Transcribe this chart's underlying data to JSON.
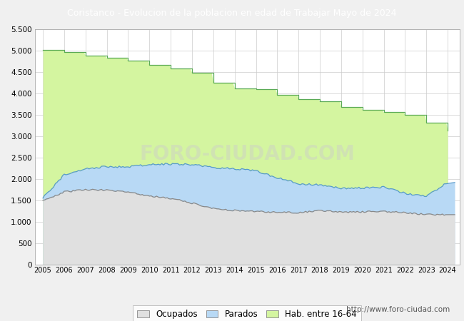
{
  "title": "Coristanco - Evolucion de la poblacion en edad de Trabajar Mayo de 2024",
  "title_bg": "#4a7cc7",
  "title_color": "#ffffff",
  "ylim": [
    0,
    5500
  ],
  "yticks": [
    0,
    500,
    1000,
    1500,
    2000,
    2500,
    3000,
    3500,
    4000,
    4500,
    5000,
    5500
  ],
  "watermark": "http://www.foro-ciudad.com",
  "legend_labels": [
    "Ocupados",
    "Parados",
    "Hab. entre 16-64"
  ],
  "colors": {
    "hab_fill": "#d4f5a0",
    "hab_line": "#5aaa55",
    "parados_fill": "#b8d9f5",
    "parados_line": "#5599cc",
    "ocupados_fill": "#e0e0e0",
    "ocupados_line": "#888888"
  },
  "years": [
    2005,
    2006,
    2007,
    2008,
    2009,
    2010,
    2011,
    2012,
    2013,
    2014,
    2015,
    2016,
    2017,
    2018,
    2019,
    2020,
    2021,
    2022,
    2023,
    2024
  ],
  "hab_values": [
    5010,
    4960,
    4870,
    4820,
    4760,
    4660,
    4570,
    4470,
    4240,
    4110,
    4090,
    3960,
    3860,
    3820,
    3680,
    3610,
    3560,
    3490,
    3320,
    3130
  ],
  "parados_values": [
    1560,
    2100,
    2240,
    2290,
    2280,
    2340,
    2350,
    2340,
    2270,
    2240,
    2190,
    2030,
    1890,
    1860,
    1790,
    1790,
    1810,
    1670,
    1600,
    1920
  ],
  "ocupados_values": [
    1490,
    1700,
    1750,
    1740,
    1690,
    1610,
    1550,
    1440,
    1310,
    1270,
    1250,
    1220,
    1220,
    1265,
    1225,
    1235,
    1245,
    1220,
    1170,
    1170
  ],
  "background_color": "#f0f0f0",
  "plot_bg": "#ffffff",
  "grid_color": "#cccccc"
}
